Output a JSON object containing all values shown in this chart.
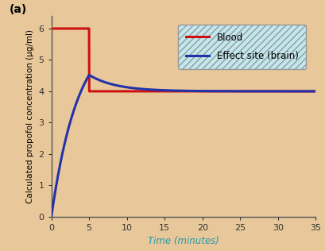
{
  "panel_label": "(a)",
  "xlabel": "Time (minutes)",
  "ylabel": "Calculated propofol concentration (µg/ml)",
  "xlim": [
    0,
    35
  ],
  "ylim": [
    0,
    6.4
  ],
  "xticks": [
    0,
    5,
    10,
    15,
    20,
    25,
    30,
    35
  ],
  "yticks": [
    0,
    1,
    2,
    3,
    4,
    5,
    6
  ],
  "background_color": "#E8C89A",
  "plot_bg_color": "none",
  "legend_bg_color": "#C0E8EE",
  "legend_edge_color": "#999999",
  "blood_color": "#CC1111",
  "effect_color": "#2233AA",
  "blood_label": "Blood",
  "effect_label": "Effect site (brain)",
  "blood_high_level": 6.0,
  "blood_drop_time": 5.0,
  "blood_low_level": 4.0,
  "effect_ke0": 0.28,
  "xlabel_color": "#2299AA",
  "ylabel_color": "#000000",
  "tick_color": "#333333",
  "spine_color": "#555555"
}
